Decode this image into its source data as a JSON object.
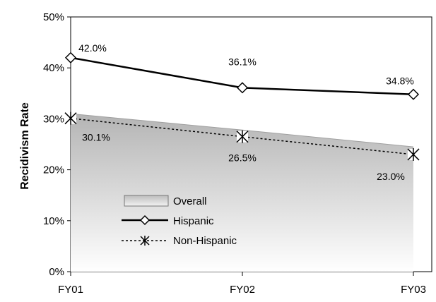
{
  "chart_data": {
    "type": "line",
    "title": "",
    "xlabel": "",
    "ylabel": "Recidivism Rate",
    "categories": [
      "FY01",
      "FY02",
      "FY03"
    ],
    "ylim": [
      0,
      50
    ],
    "yticks": [
      "0%",
      "10%",
      "20%",
      "30%",
      "40%",
      "50%"
    ],
    "grid": false,
    "legend_position": "lower-left, inside plot",
    "series": [
      {
        "name": "Overall",
        "style": "area",
        "values": [
          31.0,
          27.8,
          24.5
        ],
        "labels": [
          "",
          "",
          ""
        ],
        "color": "#c8c8c8"
      },
      {
        "name": "Hispanic",
        "style": "solid line, diamond markers",
        "values": [
          42.0,
          36.1,
          34.8
        ],
        "labels": [
          "42.0%",
          "36.1%",
          "34.8%"
        ],
        "color": "#000000"
      },
      {
        "name": "Non-Hispanic",
        "style": "dashed line, asterisk markers",
        "values": [
          30.1,
          26.5,
          23.0
        ],
        "labels": [
          "30.1%",
          "26.5%",
          "23.0%"
        ],
        "color": "#000000"
      }
    ]
  }
}
